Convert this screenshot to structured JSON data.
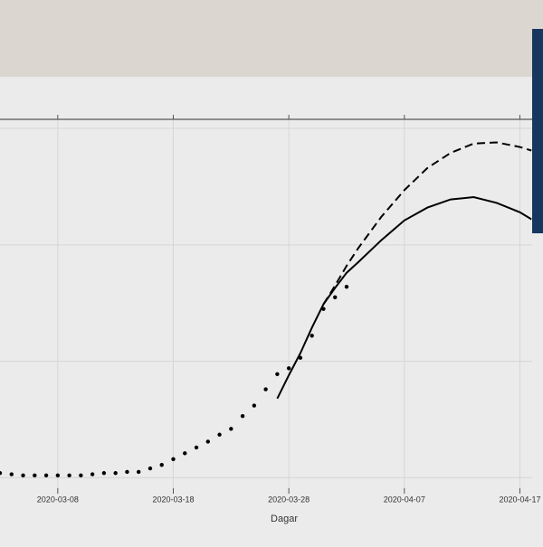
{
  "chart_data": {
    "type": "line",
    "x_label": "Dagar",
    "xlim": [
      "2020-03-03",
      "2020-04-19"
    ],
    "xticks": [
      "2020-03-08",
      "2020-03-18",
      "2020-03-28",
      "2020-04-07",
      "2020-04-17"
    ],
    "ylim": [
      -0.09,
      3.07
    ],
    "grid": true,
    "series": [
      {
        "style": "dots",
        "color": "#000000",
        "x": [
          "2020-03-03",
          "2020-03-04",
          "2020-03-05",
          "2020-03-06",
          "2020-03-07",
          "2020-03-08",
          "2020-03-09",
          "2020-03-10",
          "2020-03-11",
          "2020-03-12",
          "2020-03-13",
          "2020-03-14",
          "2020-03-15",
          "2020-03-16",
          "2020-03-17",
          "2020-03-18",
          "2020-03-19",
          "2020-03-20",
          "2020-03-21",
          "2020-03-22",
          "2020-03-23",
          "2020-03-24",
          "2020-03-25",
          "2020-03-26",
          "2020-03-27",
          "2020-03-28",
          "2020-03-29",
          "2020-03-30",
          "2020-03-31",
          "2020-04-01",
          "2020-04-02"
        ],
        "values": [
          0.04,
          0.03,
          0.02,
          0.02,
          0.02,
          0.02,
          0.02,
          0.02,
          0.03,
          0.04,
          0.04,
          0.05,
          0.05,
          0.08,
          0.11,
          0.16,
          0.21,
          0.26,
          0.31,
          0.37,
          0.42,
          0.53,
          0.62,
          0.76,
          0.89,
          0.94,
          1.03,
          1.22,
          1.45,
          1.55,
          1.64
        ]
      },
      {
        "style": "solid",
        "color": "#000000",
        "x": [
          "2020-03-27",
          "2020-03-28",
          "2020-03-29",
          "2020-03-30",
          "2020-03-31",
          "2020-04-01",
          "2020-04-02",
          "2020-04-03",
          "2020-04-05",
          "2020-04-07",
          "2020-04-09",
          "2020-04-11",
          "2020-04-13",
          "2020-04-15",
          "2020-04-17",
          "2020-04-18"
        ],
        "values": [
          0.68,
          0.88,
          1.07,
          1.29,
          1.49,
          1.63,
          1.76,
          1.85,
          2.04,
          2.21,
          2.32,
          2.39,
          2.41,
          2.36,
          2.28,
          2.22
        ]
      },
      {
        "style": "dashed",
        "color": "#000000",
        "x": [
          "2020-03-31",
          "2020-04-01",
          "2020-04-02",
          "2020-04-03",
          "2020-04-05",
          "2020-04-07",
          "2020-04-09",
          "2020-04-11",
          "2020-04-13",
          "2020-04-15",
          "2020-04-17",
          "2020-04-18"
        ],
        "values": [
          1.49,
          1.65,
          1.82,
          1.97,
          2.24,
          2.47,
          2.66,
          2.79,
          2.87,
          2.88,
          2.84,
          2.81
        ]
      }
    ]
  }
}
